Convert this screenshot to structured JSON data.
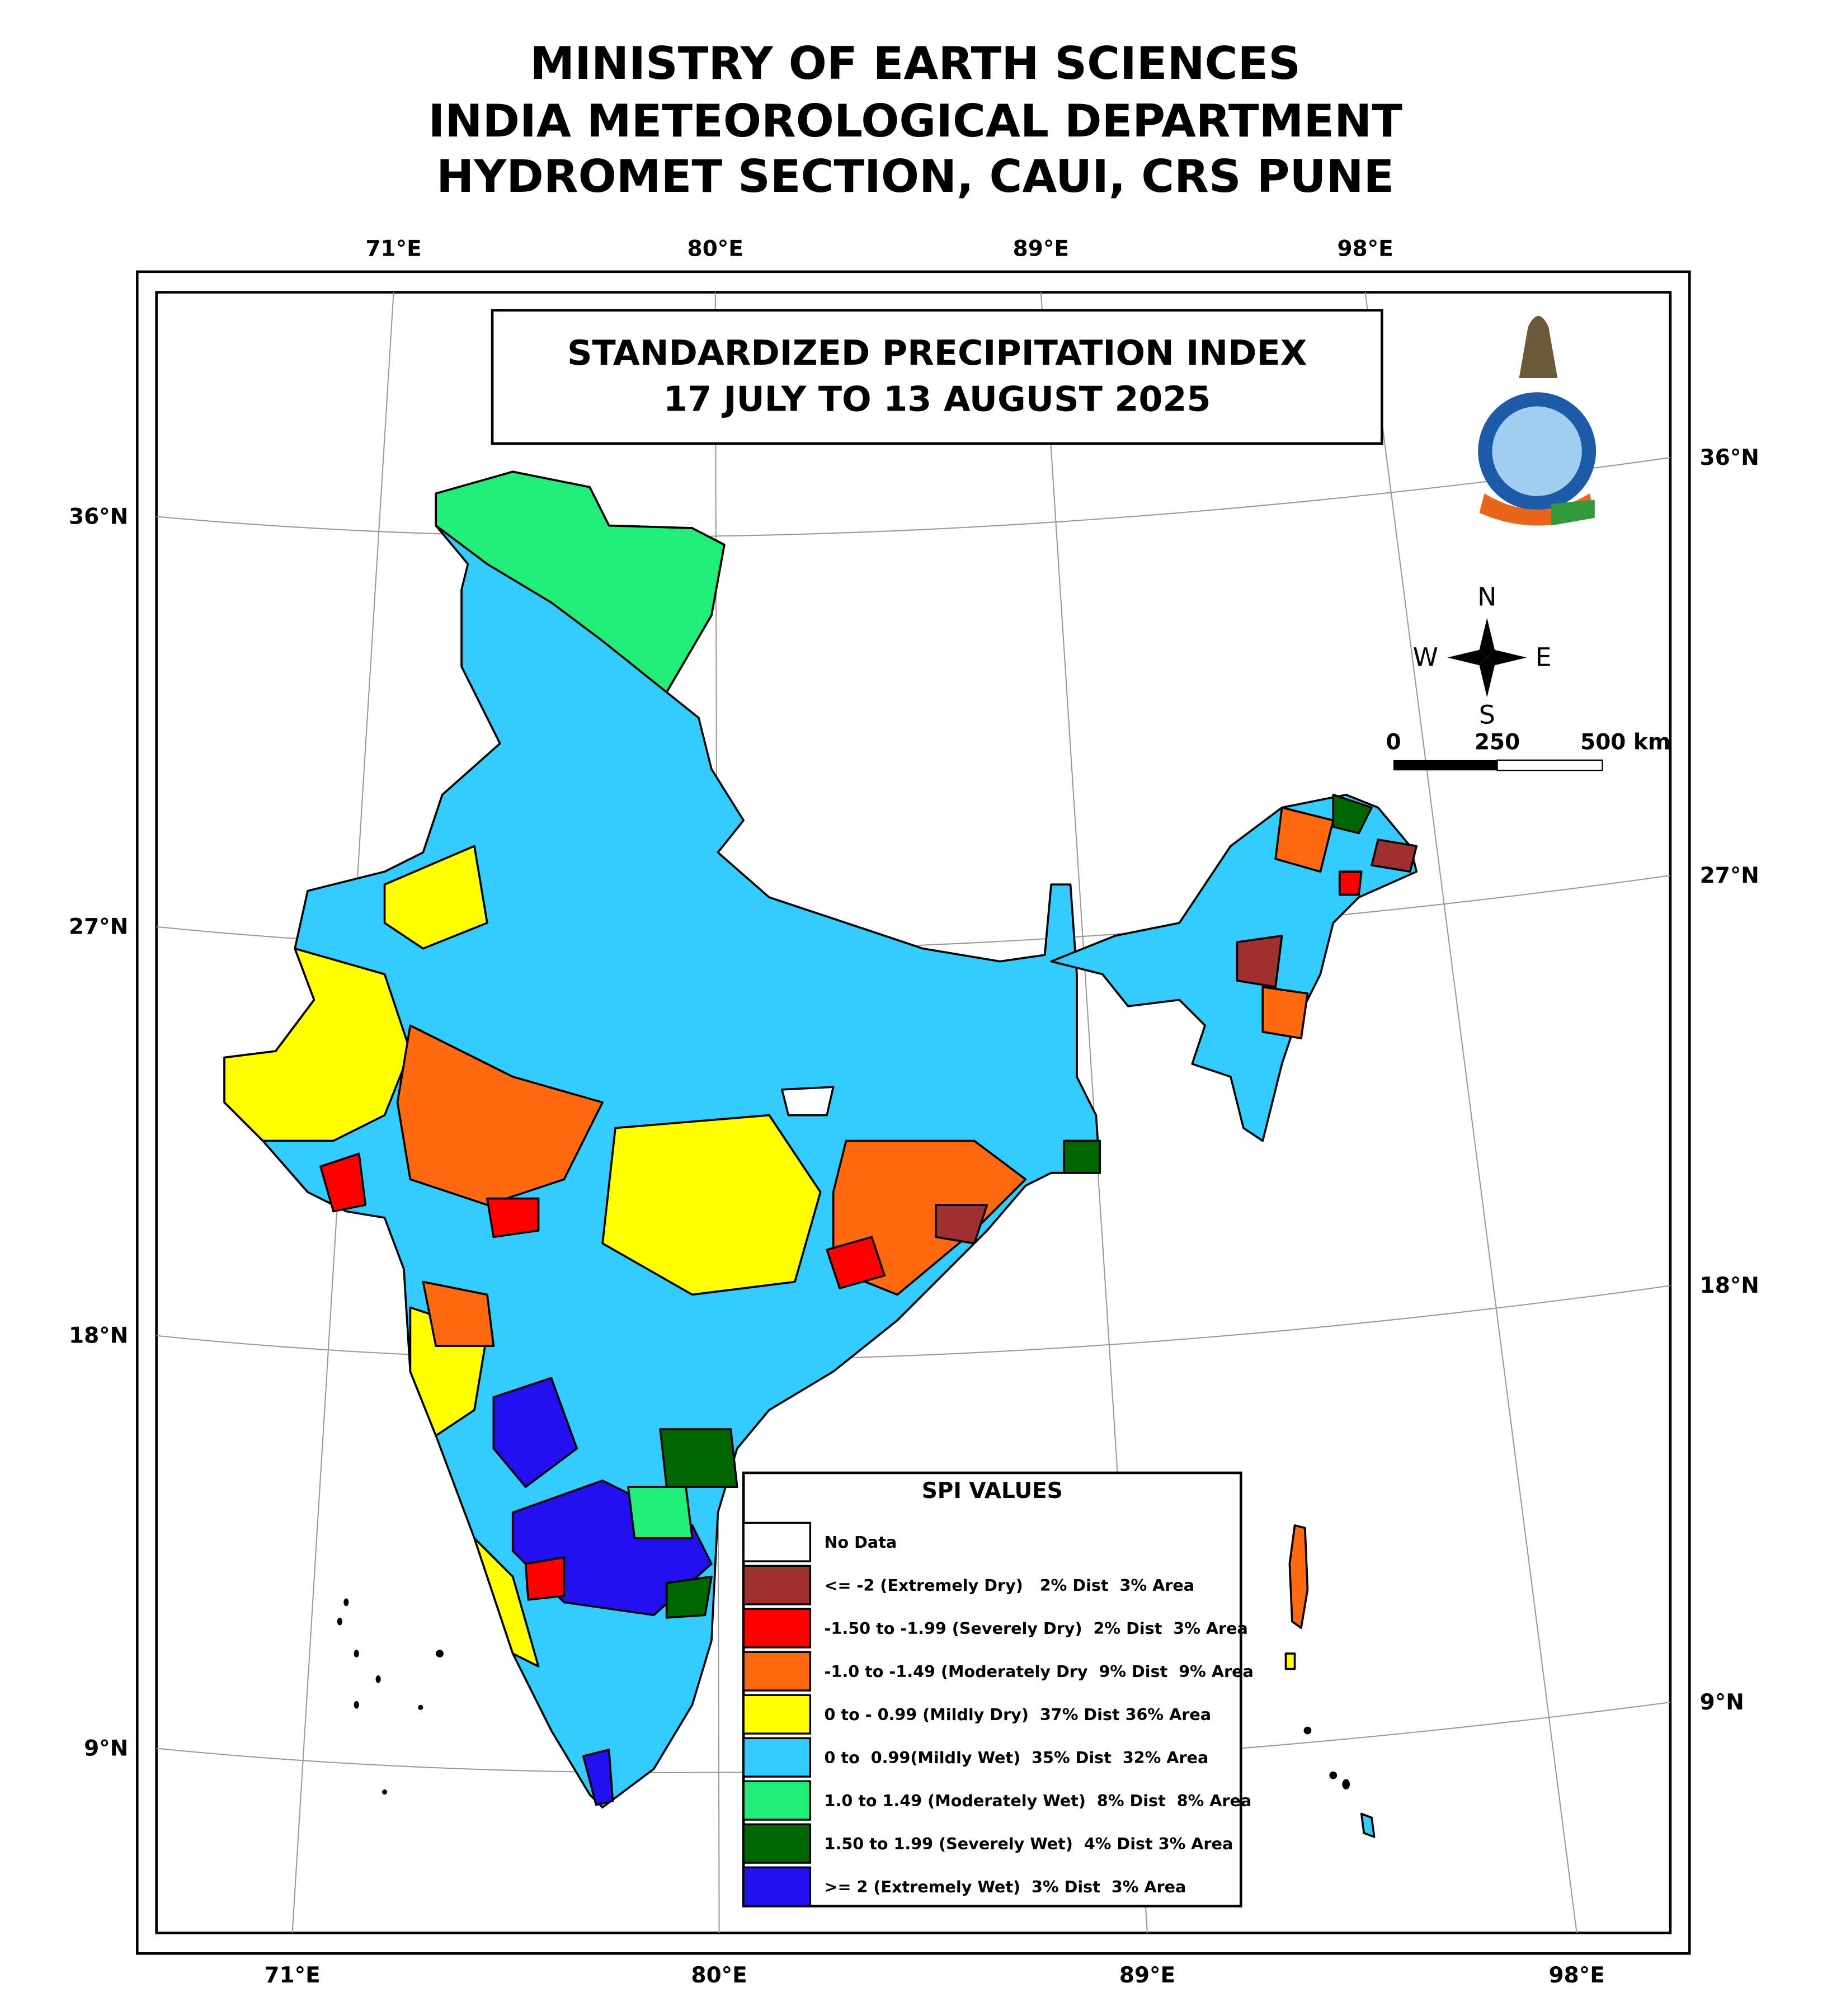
{
  "header": {
    "lines": [
      "MINISTRY OF EARTH SCIENCES",
      "INDIA METEOROLOGICAL DEPARTMENT",
      "HYDROMET SECTION, CAUI, CRS PUNE"
    ]
  },
  "map": {
    "title": [
      "STANDARDIZED PRECIPITATION INDEX",
      "17 JULY TO 13 AUGUST 2025"
    ]
  },
  "axes": {
    "top": [
      "71°E",
      "80°E",
      "89°E",
      "98°E"
    ],
    "bottom": [
      "71°E",
      "80°E",
      "89°E",
      "98°E"
    ],
    "left": [
      "36°N",
      "27°N",
      "18°N",
      "9°N"
    ],
    "right": [
      "36°N",
      "27°N",
      "18°N",
      "9°N"
    ]
  },
  "compass": {
    "n": "N",
    "s": "S",
    "w": "W",
    "e": "E"
  },
  "scale": {
    "labels": [
      "0",
      "250",
      "500 km"
    ]
  },
  "legend": {
    "title": "SPI VALUES",
    "items": [
      {
        "label": "No Data",
        "color": "#ffffff"
      },
      {
        "label": "<= -2 (Extremely Dry)   2% Dist  3% Area",
        "color": "#a0302e"
      },
      {
        "label": "-1.50 to -1.99 (Severely Dry)  2% Dist  3% Area",
        "color": "#ff0000"
      },
      {
        "label": "-1.0 to -1.49 (Moderately Dry  9% Dist  9% Area",
        "color": "#ff6a10"
      },
      {
        "label": "0 to - 0.99 (Mildly Dry)  37% Dist 36% Area",
        "color": "#ffff00"
      },
      {
        "label": "0 to  0.99(Mildly Wet)  35% Dist  32% Area",
        "color": "#33ccff"
      },
      {
        "label": "1.0 to 1.49 (Moderately Wet)  8% Dist  8% Area",
        "color": "#22ee77"
      },
      {
        "label": "1.50 to 1.99 (Severely Wet)  4% Dist 3% Area",
        "color": "#006600"
      },
      {
        "label": ">= 2 (Extremely Wet)  3% Dist  3% Area",
        "color": "#2211ee"
      }
    ]
  }
}
